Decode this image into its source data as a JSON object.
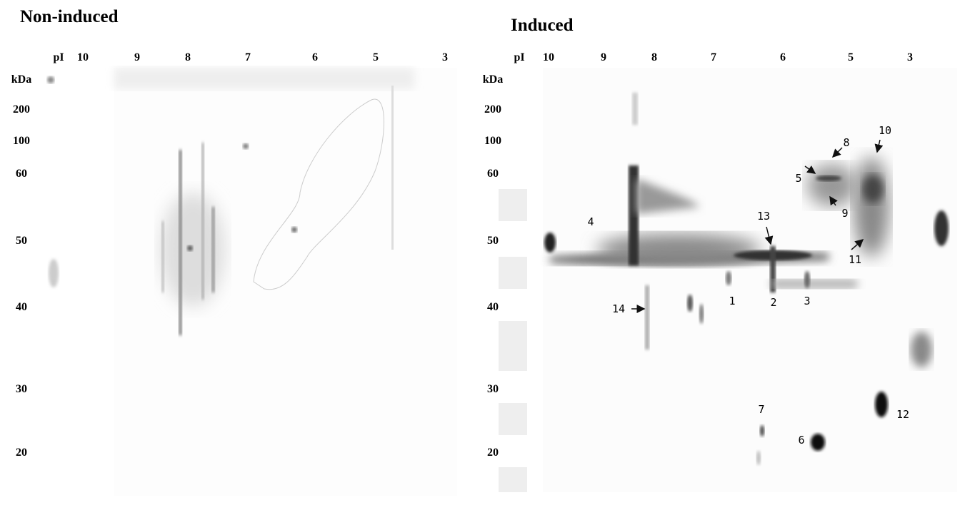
{
  "panels": [
    {
      "title": "Non-induced",
      "pi_label": "pI",
      "pi_ticks": [
        "10",
        "9",
        "8",
        "7",
        "6",
        "5",
        "3"
      ],
      "kda_label": "kDa",
      "kda_ticks": [
        "200",
        "100",
        "60",
        "50",
        "40",
        "30",
        "20"
      ]
    },
    {
      "title": "Induced",
      "pi_label": "pI",
      "pi_ticks": [
        "10",
        "9",
        "8",
        "7",
        "6",
        "5",
        "3"
      ],
      "kda_label": "kDa",
      "kda_ticks": [
        "200",
        "100",
        "60",
        "50",
        "40",
        "30",
        "20"
      ],
      "annotations": [
        "1",
        "2",
        "3",
        "4",
        "5",
        "6",
        "7",
        "8",
        "9",
        "10",
        "11",
        "12",
        "13",
        "14"
      ]
    }
  ]
}
